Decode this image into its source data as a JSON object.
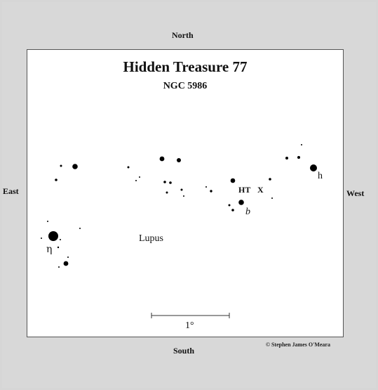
{
  "directions": {
    "north": "North",
    "south": "South",
    "east": "East",
    "west": "West"
  },
  "chart": {
    "title": "Hidden Treasure 77",
    "subtitle": "NGC 5986",
    "constellation_label": "Lupus",
    "star_labels": {
      "eta": "η",
      "h": "h",
      "b": "b"
    },
    "target_label": "HT",
    "target_marker": "X",
    "scale_label": "1°"
  },
  "credit": "© Stephen James O'Meara",
  "colors": {
    "background": "#d6d6d6",
    "chart_bg": "#ffffff",
    "ink": "#111111"
  }
}
